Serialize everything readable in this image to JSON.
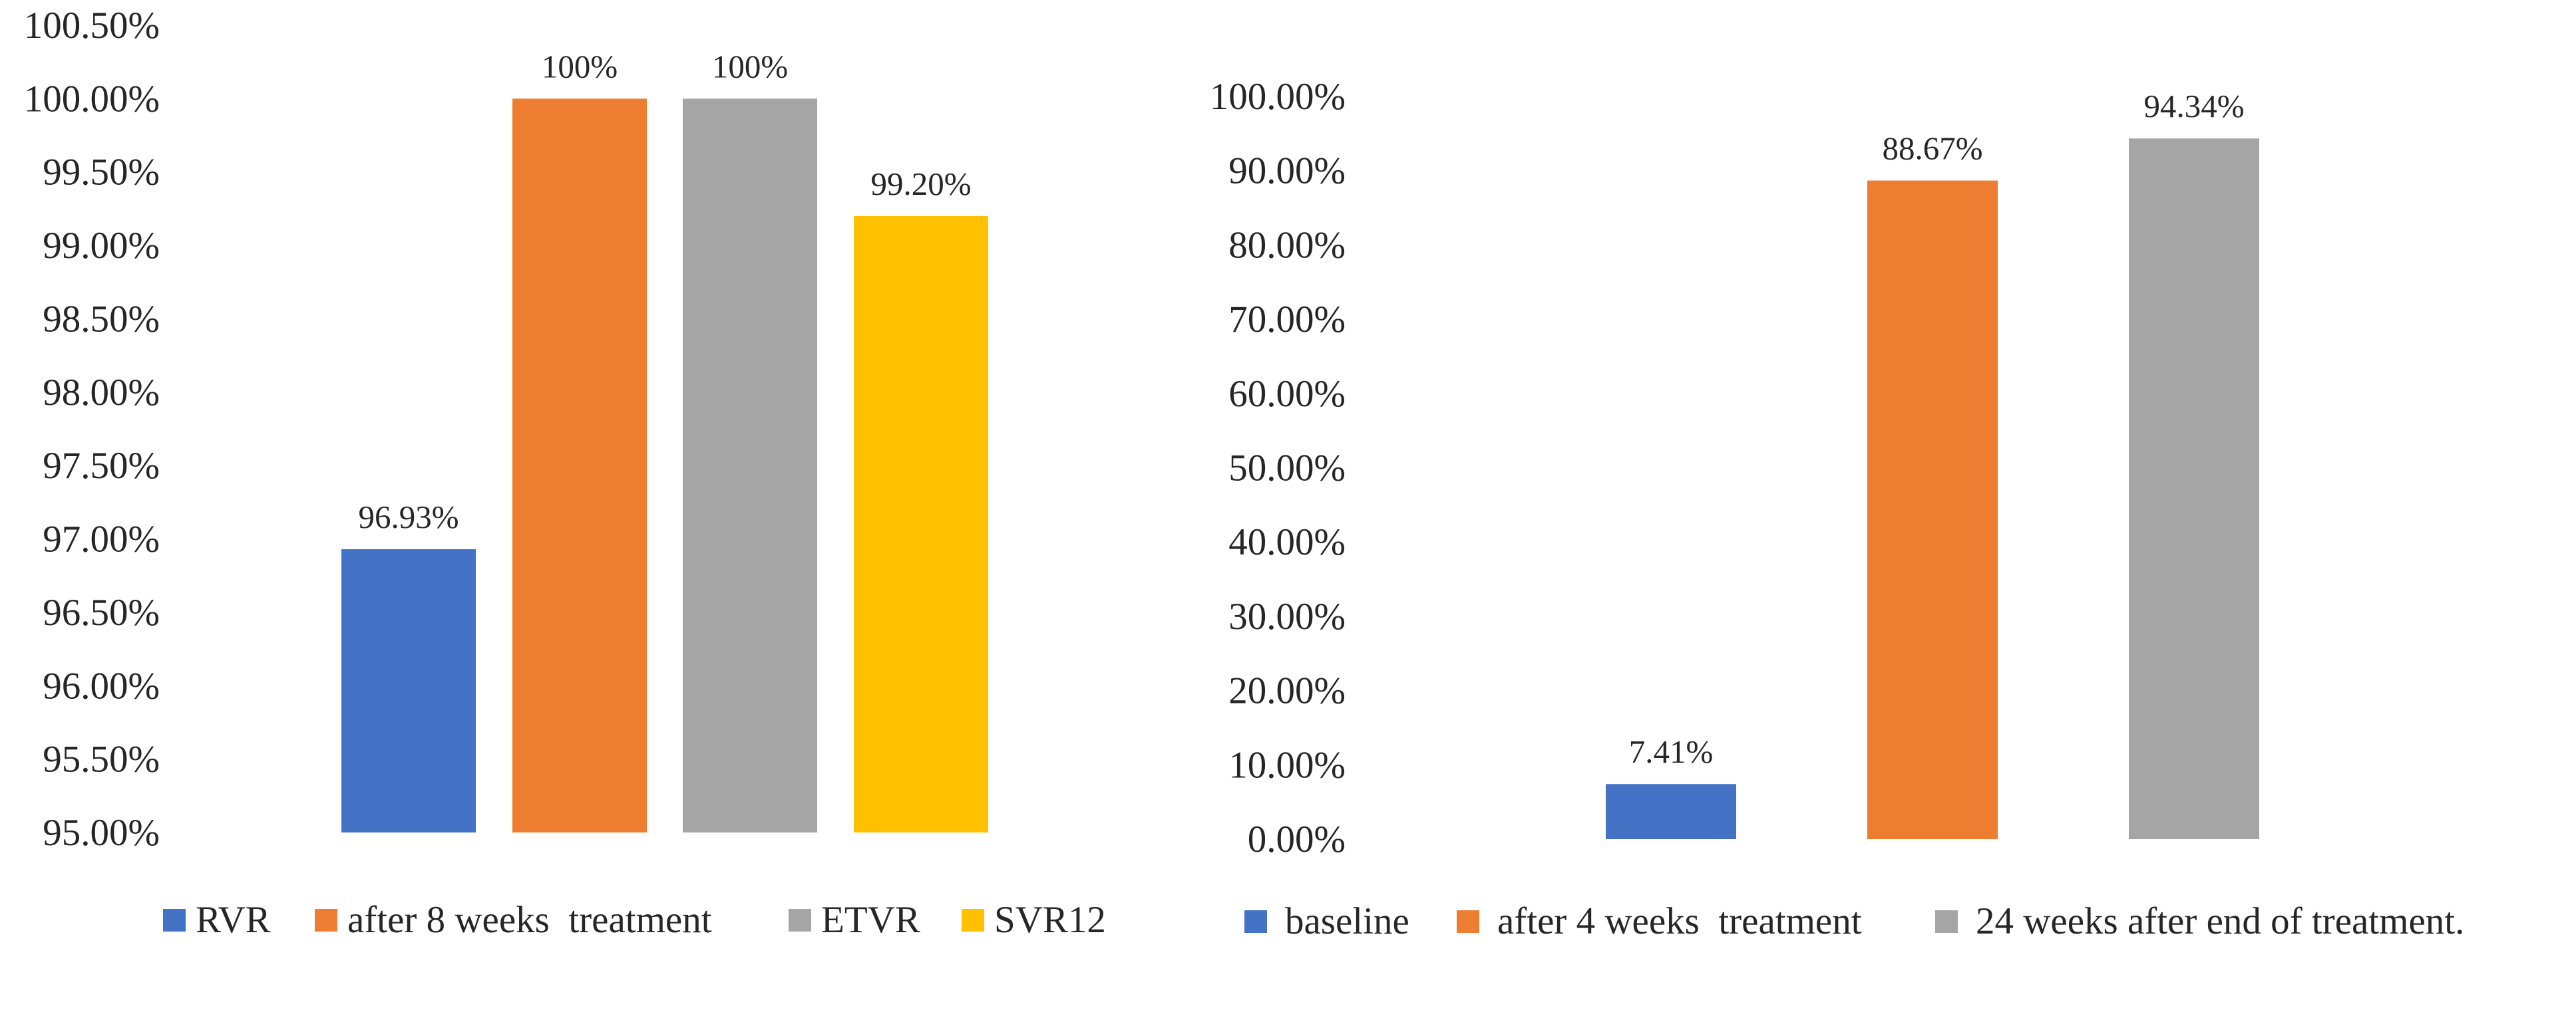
{
  "chart_data": [
    {
      "type": "bar",
      "title": "",
      "xlabel": "",
      "ylabel": "",
      "ylim": [
        0.95,
        1.005
      ],
      "grid": false,
      "legend_position": "bottom",
      "tick_labels": [
        "95.00%",
        "95.50%",
        "96.00%",
        "96.50%",
        "97.00%",
        "97.50%",
        "98.00%",
        "98.50%",
        "99.00%",
        "99.50%",
        "100.00%",
        "100.50%"
      ],
      "series": [
        {
          "name": "RVR",
          "value": 0.9693,
          "label": "96.93%",
          "color": "#4472C4"
        },
        {
          "name": "after 8 weeks  treatment",
          "value": 1.0,
          "label": "100%",
          "color": "#ED7D31"
        },
        {
          "name": "ETVR",
          "value": 1.0,
          "label": "100%",
          "color": "#A5A5A5"
        },
        {
          "name": "SVR12",
          "value": 0.992,
          "label": "99.20%",
          "color": "#FFC000"
        }
      ]
    },
    {
      "type": "bar",
      "title": "",
      "xlabel": "",
      "ylabel": "",
      "ylim": [
        0,
        1.0
      ],
      "grid": false,
      "legend_position": "bottom",
      "tick_labels": [
        "0.00%",
        "10.00%",
        "20.00%",
        "30.00%",
        "40.00%",
        "50.00%",
        "60.00%",
        "70.00%",
        "80.00%",
        "90.00%",
        "100.00%"
      ],
      "series": [
        {
          "name": "baseline",
          "value": 0.0741,
          "label": "7.41%",
          "color": "#4472C4"
        },
        {
          "name": "after 4 weeks  treatment",
          "value": 0.8867,
          "label": "88.67%",
          "color": "#ED7D31"
        },
        {
          "name": "24 weeks after end of treatment.",
          "value": 0.9434,
          "label": "94.34%",
          "color": "#A5A5A5"
        }
      ]
    }
  ]
}
